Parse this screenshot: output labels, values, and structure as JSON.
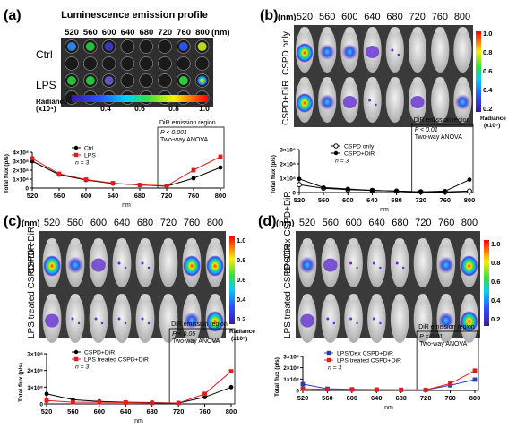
{
  "panel_a": {
    "letter": "(a)",
    "title": "Luminescence emission profile",
    "wavelengths": [
      "520",
      "560",
      "600",
      "640",
      "680",
      "720",
      "760",
      "800"
    ],
    "unit": "(nm)",
    "rows": [
      "Ctrl",
      "LPS"
    ],
    "colorbar": {
      "label_top": "Radiance",
      "label_bottom": "(x10⁴)",
      "ticks": [
        "0.4",
        "0.6",
        "0.8",
        "1.0"
      ]
    }
  },
  "panel_b": {
    "letter": "(b)",
    "unit": "(nm)",
    "wavelengths": [
      "520",
      "560",
      "600",
      "640",
      "680",
      "720",
      "760",
      "800"
    ],
    "rows": [
      "CSPD only",
      "CSPD+DiR"
    ],
    "colorbar": {
      "ticks": [
        "1.0",
        "0.8",
        "0.6",
        "0.4",
        "0.2"
      ],
      "label_top": "Radiance",
      "label_bottom": "(x10⁵)"
    }
  },
  "panel_c": {
    "letter": "(c)",
    "unit": "(nm)",
    "wavelengths": [
      "520",
      "560",
      "600",
      "640",
      "680",
      "720",
      "760",
      "800"
    ],
    "rows": [
      "CSPD +DiR",
      "LPS treated CSPD+DiR"
    ],
    "colorbar": {
      "ticks": [
        "1.0",
        "0.8",
        "0.6",
        "0.4",
        "0.2"
      ],
      "label_top": "Radiance",
      "label_bottom": "(x10⁵)"
    }
  },
  "panel_d": {
    "letter": "(d)",
    "unit": "(nm)",
    "wavelengths": [
      "520",
      "560",
      "600",
      "640",
      "680",
      "720",
      "760",
      "800"
    ],
    "rows": [
      "LPS/Dex CSPD+DiR",
      "LPS treated CSPD+DiR"
    ],
    "colorbar": {
      "ticks": [
        "1.0",
        "0.8",
        "0.6",
        "0.4",
        "0.2"
      ]
    }
  },
  "chart_data": [
    {
      "type": "line",
      "panel": "a",
      "x": [
        520,
        560,
        600,
        640,
        680,
        720,
        760,
        800
      ],
      "xticks": [
        "520",
        "560",
        "600",
        "640",
        "680",
        "720",
        "760",
        "800"
      ],
      "xlabel": "nm",
      "ylabel": "Total flux (p/s)",
      "yticks": [
        "0",
        "1×10⁸",
        "2×10⁸",
        "3×10⁸",
        "4×10⁸"
      ],
      "ylim": [
        0,
        4
      ],
      "series": [
        {
          "name": "Ctrl",
          "color": "#000000",
          "marker": "circle",
          "values": [
            3.0,
            1.5,
            0.9,
            0.5,
            0.35,
            0.2,
            1.1,
            2.3
          ]
        },
        {
          "name": "LPS",
          "color": "#e41a1c",
          "marker": "square",
          "values": [
            3.3,
            1.6,
            0.95,
            0.55,
            0.35,
            0.25,
            2.0,
            3.5
          ]
        }
      ],
      "n_label": "n = 3",
      "region_label": "DiR emission region",
      "stats": [
        "P < 0.001",
        "Two-way ANOVA"
      ]
    },
    {
      "type": "line",
      "panel": "b",
      "x": [
        520,
        560,
        600,
        640,
        680,
        720,
        760,
        800
      ],
      "xticks": [
        "520",
        "560",
        "600",
        "640",
        "680",
        "720",
        "760",
        "800"
      ],
      "xlabel": "nm",
      "ylabel": "Total flux (p/s)",
      "yticks": [
        "0",
        "1×10⁸",
        "2×10⁸",
        "3×10⁸"
      ],
      "ylim": [
        0,
        3
      ],
      "series": [
        {
          "name": "CSPD only",
          "color": "#000000",
          "marker": "open-circle",
          "values": [
            0.55,
            0.3,
            0.2,
            0.15,
            0.1,
            0.05,
            0.05,
            0.1
          ]
        },
        {
          "name": "CSPD+DiR",
          "color": "#000000",
          "marker": "circle",
          "values": [
            0.95,
            0.35,
            0.25,
            0.15,
            0.1,
            0.05,
            0.1,
            0.9
          ]
        }
      ],
      "n_label": "n = 3",
      "region_label": "DiR emission region",
      "stats": [
        "P < 0.01",
        "Two-way ANOVA"
      ]
    },
    {
      "type": "line",
      "panel": "c",
      "x": [
        520,
        560,
        600,
        640,
        680,
        720,
        760,
        800
      ],
      "xticks": [
        "520",
        "560",
        "600",
        "640",
        "680",
        "720",
        "760",
        "800"
      ],
      "xlabel": "nm",
      "ylabel": "Total flux (p/s)",
      "yticks": [
        "0",
        "1×10⁸",
        "2×10⁸",
        "3×10⁸"
      ],
      "ylim": [
        0,
        3
      ],
      "series": [
        {
          "name": "CSPD+DiR",
          "color": "#000000",
          "marker": "circle",
          "values": [
            0.6,
            0.25,
            0.15,
            0.1,
            0.08,
            0.05,
            0.4,
            1.0
          ]
        },
        {
          "name": "LPS treated   CSPD+DiR",
          "color": "#e41a1c",
          "marker": "square",
          "values": [
            0.2,
            0.1,
            0.1,
            0.08,
            0.06,
            0.05,
            0.6,
            1.95
          ]
        }
      ],
      "n_label": "n = 3",
      "region_label": "DiR emission region",
      "stats": [
        "P < 0.05",
        "Two-way ANOVA"
      ]
    },
    {
      "type": "line",
      "panel": "d",
      "x": [
        520,
        560,
        600,
        640,
        680,
        720,
        760,
        800
      ],
      "xticks": [
        "520",
        "560",
        "600",
        "640",
        "680",
        "720",
        "760",
        "800"
      ],
      "xlabel": "nm",
      "ylabel": "Total flux (p/s)",
      "yticks": [
        "0",
        "1×10⁸",
        "2×10⁸",
        "3×10⁸"
      ],
      "ylim": [
        0,
        3
      ],
      "series": [
        {
          "name": "LPS/Dex CSPD+DiR",
          "color": "#1f3fbf",
          "marker": "square",
          "values": [
            0.55,
            0.15,
            0.1,
            0.08,
            0.06,
            0.05,
            0.45,
            0.95
          ]
        },
        {
          "name": "LPS treated CSPD+DiR",
          "color": "#e41a1c",
          "marker": "square",
          "values": [
            0.15,
            0.1,
            0.08,
            0.06,
            0.05,
            0.05,
            0.6,
            1.75
          ]
        }
      ],
      "n_label": "n = 3",
      "region_label": "DiR emission region",
      "stats": [
        "P < 0.01",
        "Two-way ANOVA"
      ]
    }
  ]
}
